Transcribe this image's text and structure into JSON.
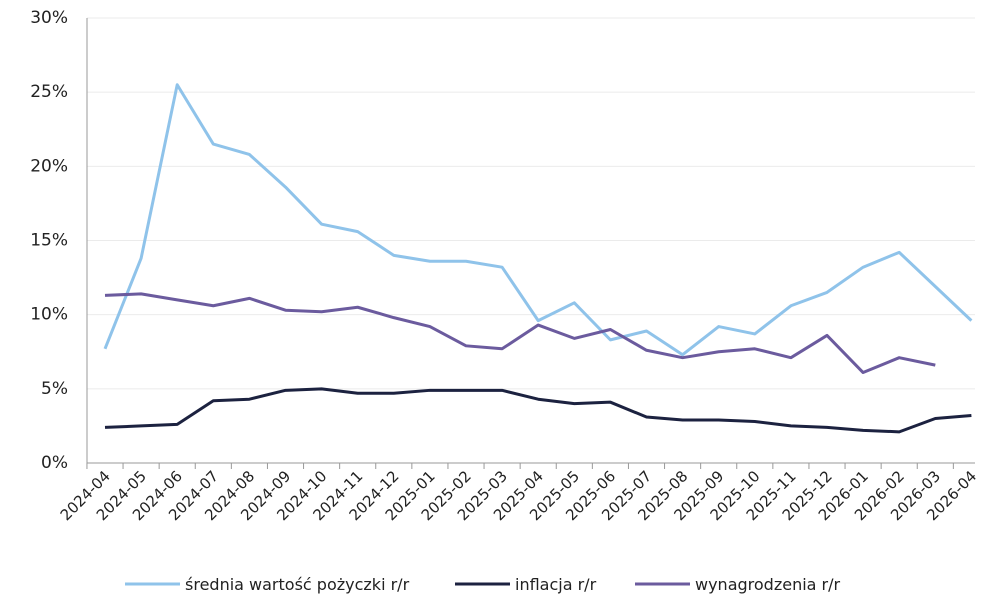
{
  "chart_data": {
    "type": "line",
    "categories": [
      "2024-04",
      "2024-05",
      "2024-06",
      "2024-07",
      "2024-08",
      "2024-09",
      "2024-10",
      "2024-11",
      "2024-12",
      "2025-01",
      "2025-02",
      "2025-03",
      "2025-04",
      "2025-05",
      "2025-06",
      "2025-07",
      "2025-08",
      "2025-09",
      "2025-10",
      "2025-11",
      "2025-12",
      "2026-01",
      "2026-02",
      "2026-03",
      "2026-04"
    ],
    "series": [
      {
        "name": "średnia wartość pożyczki r/r",
        "color": "#8fc3ea",
        "values": [
          7.7,
          13.8,
          25.5,
          21.5,
          20.8,
          18.6,
          16.1,
          15.6,
          14.0,
          13.6,
          13.6,
          13.2,
          9.6,
          10.8,
          8.3,
          8.9,
          7.3,
          9.2,
          8.7,
          10.6,
          11.5,
          13.2,
          14.2,
          11.9,
          9.6
        ]
      },
      {
        "name": "inflacja r/r",
        "color": "#1c2240",
        "values": [
          2.4,
          2.5,
          2.6,
          4.2,
          4.3,
          4.9,
          5.0,
          4.7,
          4.7,
          4.9,
          4.9,
          4.9,
          4.3,
          4.0,
          4.1,
          3.1,
          2.9,
          2.9,
          2.8,
          2.5,
          2.4,
          2.2,
          2.1,
          3.0,
          3.2
        ]
      },
      {
        "name": "wynagrodzenia r/r",
        "color": "#6b5b9e",
        "values": [
          11.3,
          11.4,
          11.0,
          10.6,
          11.1,
          10.3,
          10.2,
          10.5,
          9.8,
          9.2,
          7.9,
          7.7,
          9.3,
          8.4,
          9.0,
          7.6,
          7.1,
          7.5,
          7.7,
          7.1,
          8.6,
          6.1,
          7.1,
          6.6,
          null
        ]
      }
    ],
    "ylim": [
      0,
      30
    ],
    "yticks": [
      {
        "value": 0,
        "label": "0%"
      },
      {
        "value": 5,
        "label": "5%"
      },
      {
        "value": 10,
        "label": "10%"
      },
      {
        "value": 15,
        "label": "15%"
      },
      {
        "value": 20,
        "label": "20%"
      },
      {
        "value": 25,
        "label": "25%"
      },
      {
        "value": 30,
        "label": "30%"
      }
    ],
    "grid": true,
    "legend": "bottom"
  }
}
